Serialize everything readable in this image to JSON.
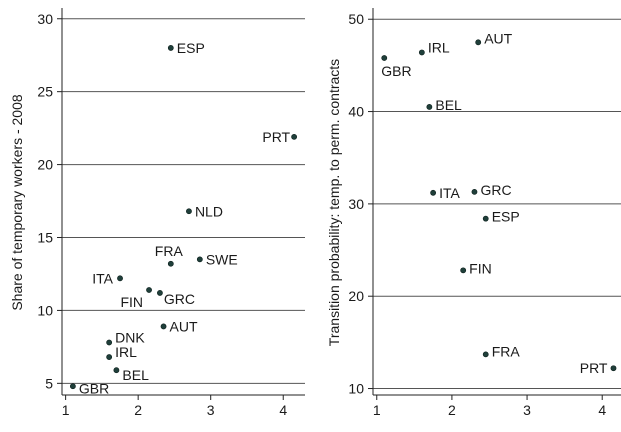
{
  "chart_data": [
    {
      "type": "scatter",
      "title": "",
      "xlabel": "",
      "ylabel": "Share of temporary workers - 2008",
      "xlim": [
        0.95,
        4.3
      ],
      "ylim": [
        4.2,
        30.6
      ],
      "xticks": [
        1,
        2,
        3,
        4
      ],
      "yticks": [
        5,
        10,
        15,
        20,
        25,
        30
      ],
      "grid": "horizontal",
      "points": [
        {
          "label": "ESP",
          "x": 2.45,
          "y": 28.0
        },
        {
          "label": "PRT",
          "x": 4.15,
          "y": 21.9
        },
        {
          "label": "NLD",
          "x": 2.7,
          "y": 16.8
        },
        {
          "label": "SWE",
          "x": 2.85,
          "y": 13.5
        },
        {
          "label": "FRA",
          "x": 2.45,
          "y": 13.2
        },
        {
          "label": "ITA",
          "x": 1.75,
          "y": 12.2
        },
        {
          "label": "FIN",
          "x": 2.15,
          "y": 11.4
        },
        {
          "label": "GRC",
          "x": 2.3,
          "y": 11.2
        },
        {
          "label": "AUT",
          "x": 2.35,
          "y": 8.9
        },
        {
          "label": "DNK",
          "x": 1.6,
          "y": 7.8
        },
        {
          "label": "IRL",
          "x": 1.6,
          "y": 6.8
        },
        {
          "label": "BEL",
          "x": 1.7,
          "y": 5.9
        },
        {
          "label": "GBR",
          "x": 1.1,
          "y": 4.8
        }
      ]
    },
    {
      "type": "scatter",
      "title": "",
      "xlabel": "",
      "ylabel": "Transition probability: temp. to perm. contracts",
      "xlim": [
        0.95,
        4.25
      ],
      "ylim": [
        9.3,
        51.0
      ],
      "xticks": [
        1,
        2,
        3,
        4
      ],
      "yticks": [
        10,
        20,
        30,
        40,
        50
      ],
      "grid": "horizontal",
      "points": [
        {
          "label": "AUT",
          "x": 2.35,
          "y": 47.5
        },
        {
          "label": "IRL",
          "x": 1.6,
          "y": 46.4
        },
        {
          "label": "GBR",
          "x": 1.1,
          "y": 45.8
        },
        {
          "label": "BEL",
          "x": 1.7,
          "y": 40.5
        },
        {
          "label": "ITA",
          "x": 1.75,
          "y": 31.2
        },
        {
          "label": "GRC",
          "x": 2.3,
          "y": 31.3
        },
        {
          "label": "ESP",
          "x": 2.45,
          "y": 28.4
        },
        {
          "label": "FIN",
          "x": 2.15,
          "y": 22.8
        },
        {
          "label": "FRA",
          "x": 2.45,
          "y": 13.7
        },
        {
          "label": "PRT",
          "x": 4.15,
          "y": 12.2
        }
      ]
    }
  ]
}
